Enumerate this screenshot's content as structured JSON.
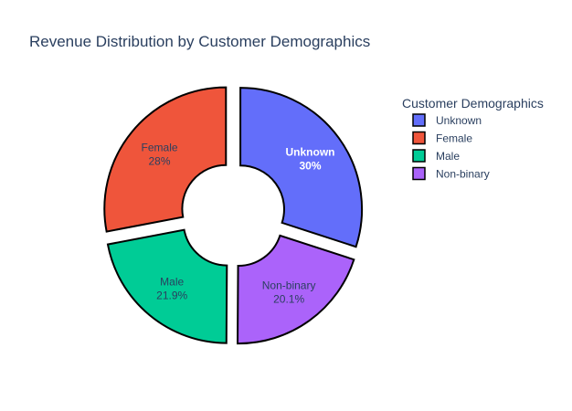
{
  "chart_data": {
    "type": "pie",
    "subtype": "donut",
    "title": "Revenue Distribution by Customer Demographics",
    "legend": {
      "title": "Customer Demographics",
      "placement": "right"
    },
    "slices": [
      {
        "label": "Unknown",
        "percent_text": "30%",
        "value": 30.0,
        "color": "#636efa",
        "text_color": "#ffffff",
        "bold": true
      },
      {
        "label": "Non-binary",
        "percent_text": "20.1%",
        "value": 20.1,
        "color": "#ab63fa",
        "text_color": "#2a3f5f",
        "bold": false
      },
      {
        "label": "Male",
        "percent_text": "21.9%",
        "value": 21.9,
        "color": "#00cc96",
        "text_color": "#2a3f5f",
        "bold": false
      },
      {
        "label": "Female",
        "percent_text": "28%",
        "value": 28.0,
        "color": "#ef553b",
        "text_color": "#2a3f5f",
        "bold": false
      }
    ],
    "legend_order": [
      "Unknown",
      "Female",
      "Male",
      "Non-binary"
    ],
    "slice_outline_color": "#000000",
    "hole": 0.3,
    "pulled": true
  }
}
